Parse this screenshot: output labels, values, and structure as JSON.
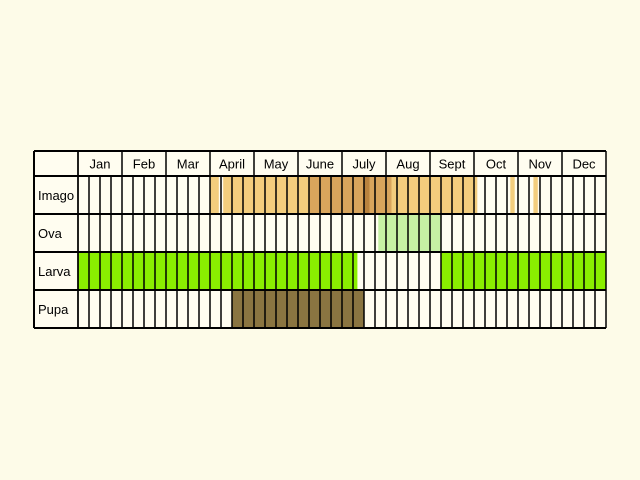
{
  "chart_data": {
    "type": "table",
    "months": [
      "Jan",
      "Feb",
      "Mar",
      "April",
      "May",
      "June",
      "July",
      "Aug",
      "Sept",
      "Oct",
      "Nov",
      "Dec"
    ],
    "stages": [
      "Imago",
      "Ova",
      "Larva",
      "Pupa"
    ],
    "colors": {
      "background": "#fdfbe8",
      "cell": "#fffdf0",
      "grid": "#000000",
      "imago_light": "#f3cd7d",
      "imago_mid": "#d9a55c",
      "imago_dark": "#b8823e",
      "ova": "#c6f0a4",
      "larva": "#8aef00",
      "pupa": "#8a7541"
    },
    "fills": [
      {
        "stage": "Imago",
        "start_week": 12,
        "end_week": 12.8,
        "color": "imago_light"
      },
      {
        "stage": "Imago",
        "start_week": 13.2,
        "end_week": 21,
        "color": "imago_light"
      },
      {
        "stage": "Imago",
        "start_week": 21,
        "end_week": 26,
        "color": "imago_mid"
      },
      {
        "stage": "Imago",
        "start_week": 26,
        "end_week": 26.5,
        "color": "imago_dark"
      },
      {
        "stage": "Imago",
        "start_week": 26.5,
        "end_week": 28.5,
        "color": "imago_mid"
      },
      {
        "stage": "Imago",
        "start_week": 28.5,
        "end_week": 36.3,
        "color": "imago_light"
      },
      {
        "stage": "Imago",
        "start_week": 39.3,
        "end_week": 39.7,
        "color": "imago_light"
      },
      {
        "stage": "Imago",
        "start_week": 41.4,
        "end_week": 41.8,
        "color": "imago_light"
      },
      {
        "stage": "Ova",
        "start_week": 27.3,
        "end_week": 33,
        "color": "ova"
      },
      {
        "stage": "Larva",
        "start_week": 0,
        "end_week": 25.4,
        "color": "larva"
      },
      {
        "stage": "Larva",
        "start_week": 33,
        "end_week": 48,
        "color": "larva"
      },
      {
        "stage": "Pupa",
        "start_week": 14,
        "end_week": 26,
        "color": "pupa"
      }
    ]
  }
}
